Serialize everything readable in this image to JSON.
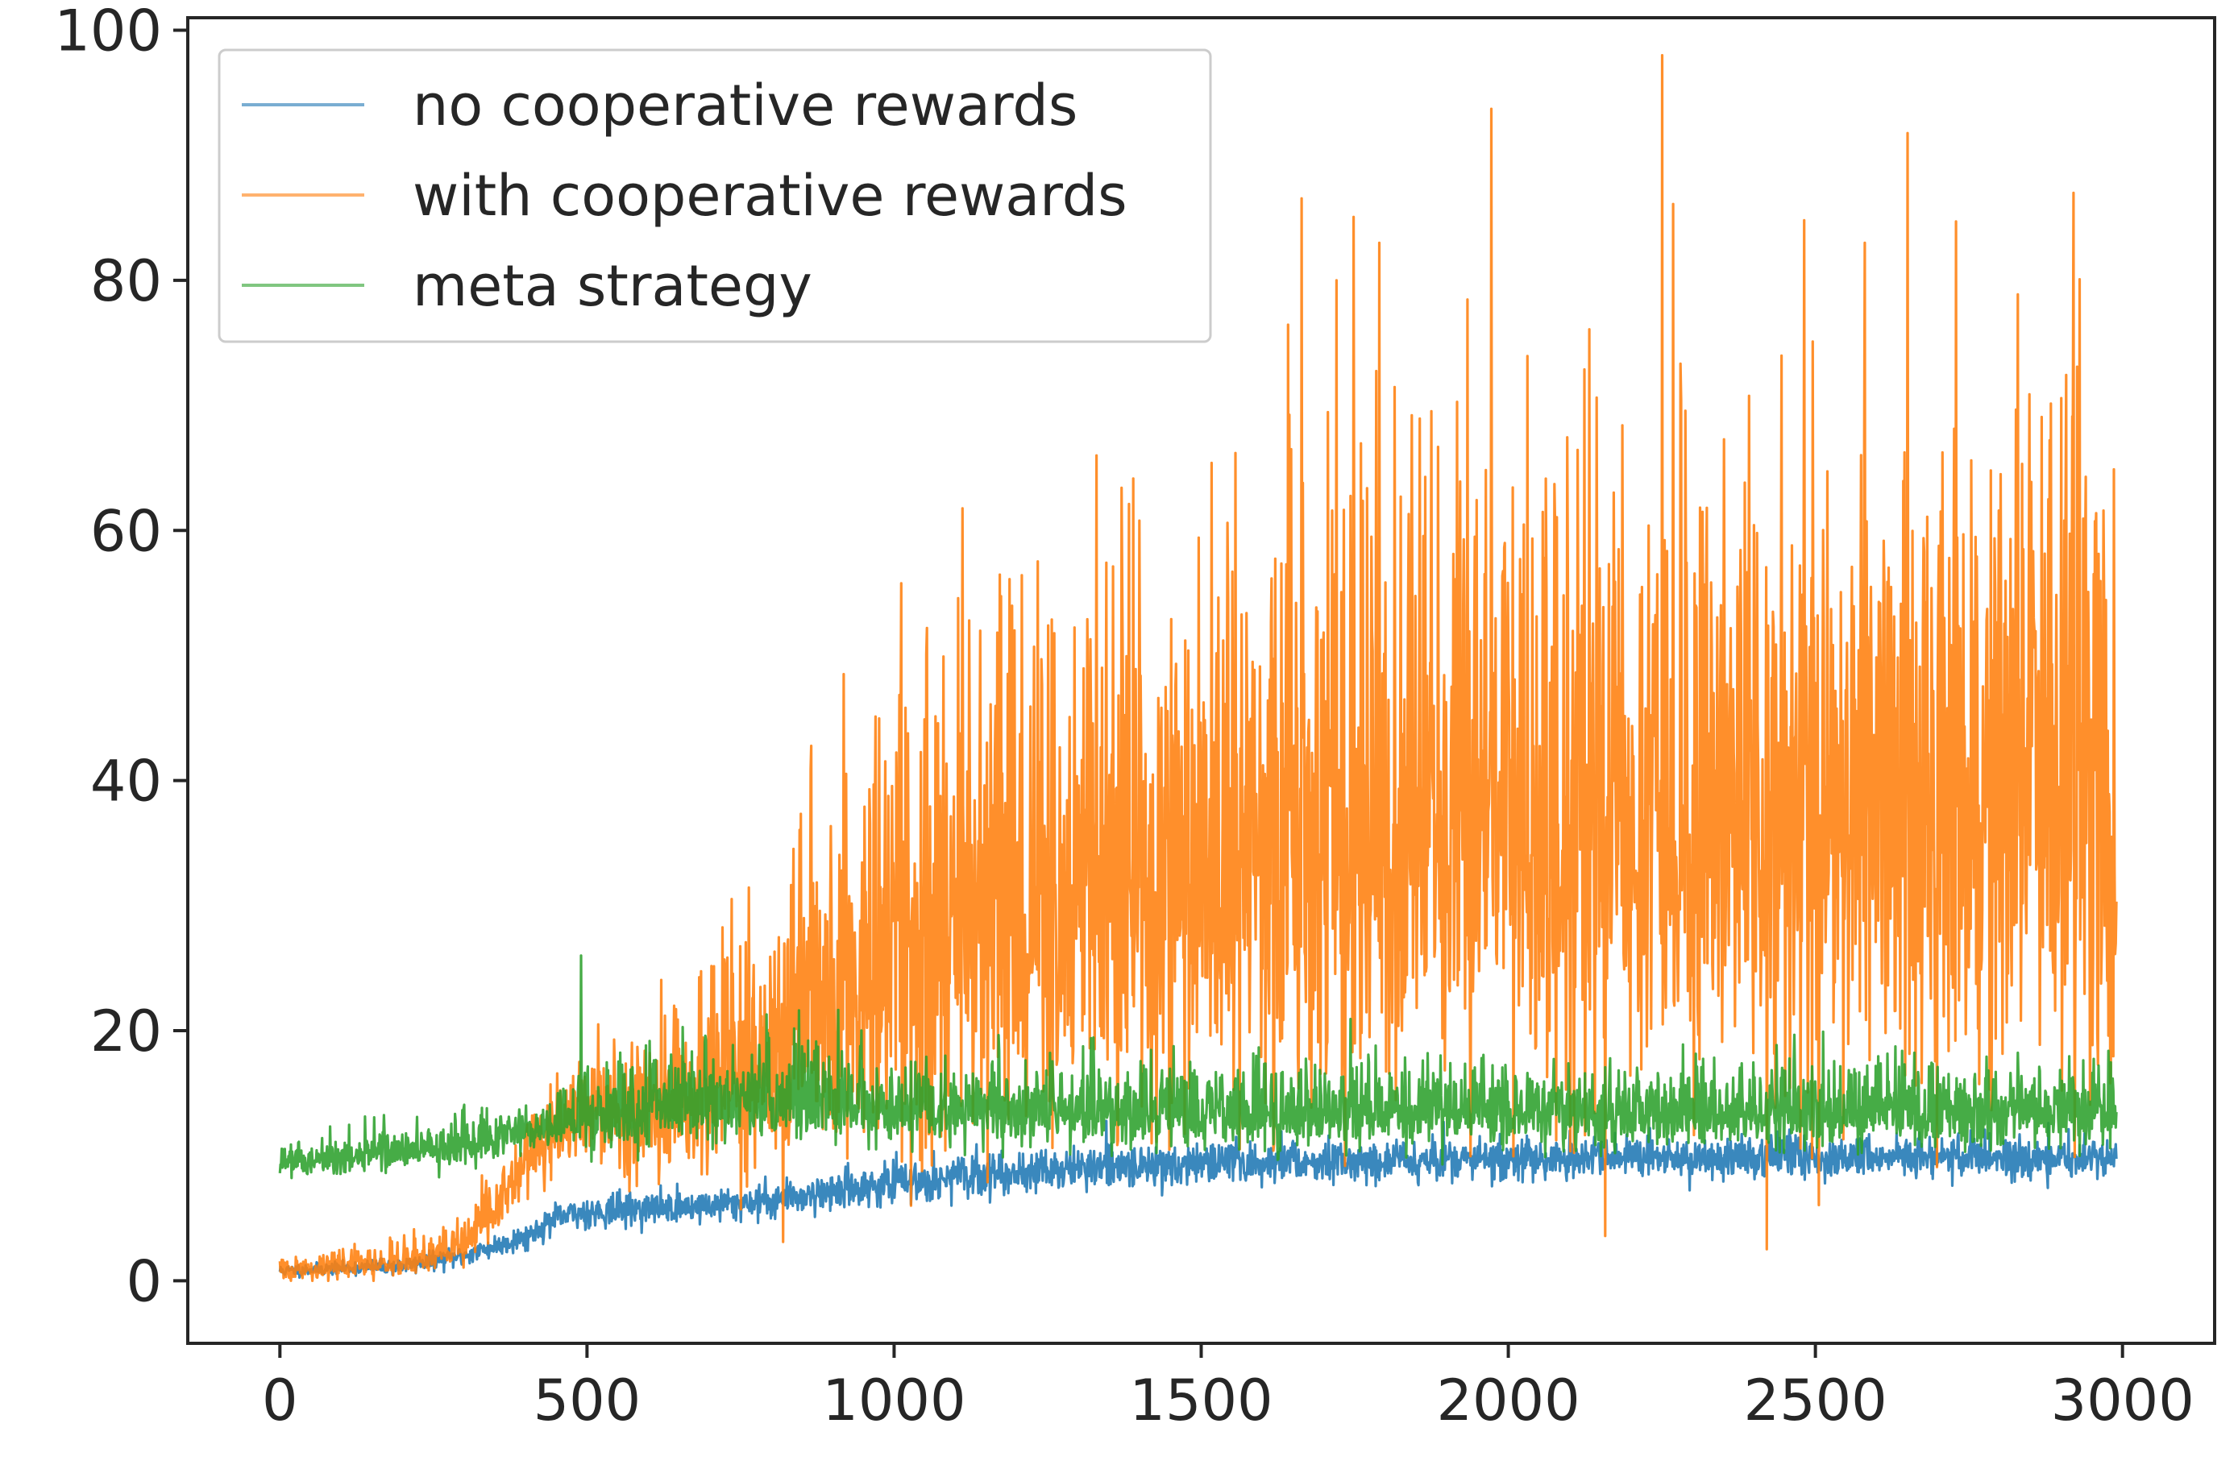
{
  "chart_data": {
    "type": "line",
    "title": "",
    "xlabel": "",
    "ylabel": "",
    "xlim": [
      -150,
      3150
    ],
    "ylim": [
      -5,
      101
    ],
    "x_ticks": [
      0,
      500,
      1000,
      1500,
      2000,
      2500,
      3000
    ],
    "y_ticks": [
      0,
      20,
      40,
      60,
      80,
      100
    ],
    "x_tick_labels": [
      "0",
      "500",
      "1000",
      "1500",
      "2000",
      "2500",
      "3000"
    ],
    "y_tick_labels": [
      "0",
      "20",
      "40",
      "60",
      "80",
      "100"
    ],
    "grid": false,
    "legend_position": "upper-left",
    "n_points": 3000,
    "series": [
      {
        "name": "no cooperative rewards",
        "color": "#1f77b4",
        "x": [
          0,
          100,
          200,
          300,
          400,
          450,
          500,
          600,
          700,
          800,
          900,
          1000,
          1100,
          1200,
          1300,
          1400,
          1500,
          1600,
          1700,
          1800,
          1900,
          2000,
          2100,
          2200,
          2300,
          2400,
          2500,
          2600,
          2700,
          2800,
          2900,
          2990
        ],
        "y": [
          0.8,
          1.0,
          1.2,
          2.0,
          3.5,
          5.0,
          5.5,
          5.8,
          6.0,
          6.5,
          7.2,
          7.8,
          8.3,
          8.7,
          9.0,
          9.2,
          9.4,
          9.5,
          9.6,
          9.6,
          9.7,
          9.7,
          9.8,
          9.8,
          9.8,
          9.9,
          9.9,
          9.9,
          9.9,
          9.9,
          9.9,
          9.9
        ],
        "noise": [
          0.3,
          0.3,
          0.4,
          0.5,
          0.6,
          0.7,
          0.8,
          0.8,
          0.8,
          0.9,
          0.9,
          1.0,
          1.0,
          1.0,
          1.0,
          1.0,
          1.0,
          1.0,
          1.0,
          1.0,
          1.0,
          1.0,
          1.0,
          1.0,
          1.0,
          1.0,
          1.0,
          1.0,
          1.0,
          1.0,
          1.0,
          1.0
        ]
      },
      {
        "name": "with cooperative rewards",
        "color": "#ff7f0e",
        "x": [
          0,
          100,
          200,
          250,
          300,
          350,
          400,
          450,
          500,
          550,
          600,
          700,
          800,
          900,
          1000,
          1100,
          1200,
          1300,
          1400,
          1500,
          1600,
          1700,
          1800,
          1900,
          2000,
          2100,
          2200,
          2300,
          2400,
          2500,
          2600,
          2700,
          2800,
          2900,
          2990
        ],
        "y": [
          0.8,
          1.0,
          1.5,
          2.0,
          3.0,
          5.5,
          9.0,
          12.0,
          13.0,
          13.5,
          14.0,
          15.5,
          18.0,
          22.0,
          25.0,
          27.0,
          28.5,
          30.0,
          31.0,
          32.0,
          33.0,
          34.0,
          35.0,
          35.5,
          36.0,
          36.5,
          37.0,
          37.0,
          37.0,
          37.0,
          37.0,
          37.0,
          37.0,
          37.0,
          37.0
        ],
        "noise": [
          0.4,
          0.5,
          0.6,
          0.7,
          0.8,
          1.0,
          1.5,
          1.5,
          2.0,
          2.5,
          3.0,
          4.0,
          5.5,
          7.0,
          8.0,
          9.0,
          9.5,
          10.0,
          10.5,
          11.0,
          11.5,
          12.0,
          12.0,
          12.0,
          12.0,
          12.0,
          12.0,
          12.0,
          12.0,
          12.0,
          12.0,
          12.0,
          12.0,
          12.0,
          12.0
        ]
      },
      {
        "name": "meta strategy",
        "color": "#2ca02c",
        "x": [
          0,
          100,
          200,
          300,
          400,
          450,
          500,
          600,
          700,
          800,
          900,
          1000,
          1200,
          1400,
          1600,
          1800,
          2000,
          2200,
          2400,
          2600,
          2800,
          2990
        ],
        "y": [
          9.5,
          9.8,
          10.2,
          10.8,
          11.8,
          12.5,
          13.0,
          13.5,
          14.0,
          14.5,
          14.0,
          13.5,
          13.5,
          13.5,
          13.5,
          13.5,
          13.5,
          13.5,
          13.5,
          13.5,
          13.5,
          13.5
        ],
        "noise": [
          0.7,
          0.8,
          0.8,
          0.9,
          0.9,
          1.0,
          1.6,
          1.8,
          2.0,
          2.2,
          1.8,
          1.6,
          1.6,
          1.6,
          1.6,
          1.6,
          1.6,
          1.6,
          1.6,
          1.6,
          1.6,
          1.6
        ]
      }
    ],
    "annotated_peaks": [
      {
        "series": "with cooperative rewards",
        "x": 2250,
        "y": 98
      },
      {
        "series": "with cooperative rewards",
        "x": 2920,
        "y": 87
      },
      {
        "series": "with cooperative rewards",
        "x": 1790,
        "y": 83
      },
      {
        "series": "with cooperative rewards",
        "x": 2580,
        "y": 83
      },
      {
        "series": "with cooperative rewards",
        "x": 1720,
        "y": 80
      },
      {
        "series": "with cooperative rewards",
        "x": 1330,
        "y": 66
      },
      {
        "series": "meta strategy",
        "x": 490,
        "y": 26
      }
    ]
  }
}
